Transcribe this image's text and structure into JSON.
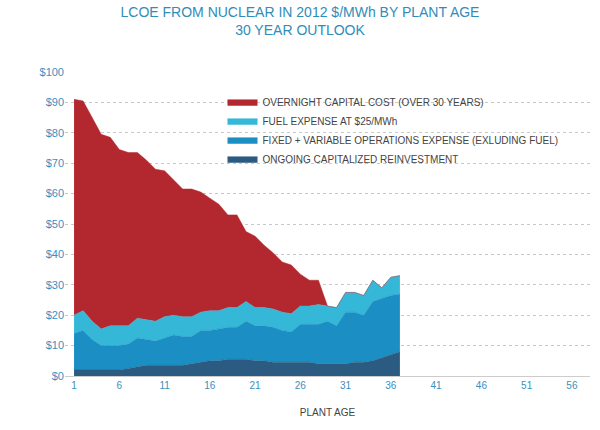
{
  "chart_data": {
    "type": "area",
    "title": "LCOE FROM NUCLEAR IN 2012 $/MWh BY PLANT AGE",
    "subtitle": "30 YEAR OUTLOOK",
    "x_label": "PLANT AGE",
    "stacked": true,
    "grid": true,
    "legend": "top",
    "x": [
      1,
      2,
      3,
      4,
      5,
      6,
      7,
      8,
      9,
      10,
      11,
      12,
      13,
      14,
      15,
      16,
      17,
      18,
      19,
      20,
      21,
      22,
      23,
      24,
      25,
      26,
      27,
      28,
      29,
      30,
      31,
      32,
      33,
      34,
      35,
      36,
      37
    ],
    "xlim": [
      0,
      58
    ],
    "xticks": [
      1,
      6,
      11,
      16,
      21,
      26,
      31,
      36,
      41,
      46,
      51,
      56
    ],
    "ylim": [
      0,
      100
    ],
    "yticks": [
      {
        "value": 0,
        "label": "$0"
      },
      {
        "value": 10,
        "label": "$10"
      },
      {
        "value": 20,
        "label": "$20"
      },
      {
        "value": 30,
        "label": "$30"
      },
      {
        "value": 40,
        "label": "$40"
      },
      {
        "value": 50,
        "label": "$50"
      },
      {
        "value": 60,
        "label": "$60"
      },
      {
        "value": 70,
        "label": "$70"
      },
      {
        "value": 80,
        "label": "$80"
      },
      {
        "value": 90,
        "label": "$90"
      },
      {
        "value": 100,
        "label": "$100"
      }
    ],
    "series": [
      {
        "name": "ONGOING CAPITALIZED REINVESTMENT",
        "color": "#2b5b80",
        "values": [
          2,
          2,
          2,
          2,
          2,
          2,
          2.5,
          3,
          3.5,
          3.5,
          3.5,
          3.5,
          3.5,
          4,
          4.5,
          5,
          5,
          5.5,
          5.5,
          5.5,
          5,
          5,
          4.5,
          4.5,
          4.5,
          4.5,
          4.5,
          4,
          4,
          4,
          4,
          4.5,
          4.5,
          5,
          6,
          7,
          8
        ]
      },
      {
        "name": "FIXED + VARIABLE OPERATIONS EXPENSE (EXLUDING FUEL)",
        "color": "#1b8ec4",
        "values": [
          12,
          13,
          10,
          8,
          8,
          8,
          8,
          9.5,
          8.5,
          8,
          9,
          10,
          9.5,
          9,
          10.5,
          10,
          10.5,
          10.5,
          10.5,
          12.5,
          11.5,
          11.5,
          11.5,
          10.5,
          10,
          12.5,
          12.5,
          13,
          14,
          12.5,
          17,
          16.5,
          15.5,
          19.5,
          19.5,
          19.5,
          19
        ]
      },
      {
        "name": "FUEL EXPENSE AT $25/MWh",
        "color": "#35b8d8",
        "values": [
          6,
          6.5,
          6,
          5.5,
          6.5,
          6.5,
          6,
          6.5,
          6.5,
          6.5,
          7,
          6.5,
          6.5,
          6.5,
          6,
          6.5,
          6,
          6.5,
          6.5,
          6.5,
          6,
          6,
          6,
          6,
          6,
          6,
          6,
          6.5,
          5,
          6,
          6.5,
          6.5,
          6.5,
          7,
          3.5,
          6,
          6
        ]
      },
      {
        "name": "OVERNIGHT CAPITAL COST (OVER 30 YEARS)",
        "color": "#b3282e",
        "values": [
          71,
          69,
          67,
          64,
          62,
          58,
          57,
          54.5,
          52.5,
          50,
          48,
          44.5,
          42,
          42,
          39.5,
          37,
          35,
          30.5,
          30.5,
          23,
          23.5,
          20.5,
          18.5,
          16.5,
          16,
          10.5,
          8.5,
          8,
          0,
          null,
          null,
          null,
          null,
          null,
          null,
          null,
          null
        ]
      }
    ]
  }
}
